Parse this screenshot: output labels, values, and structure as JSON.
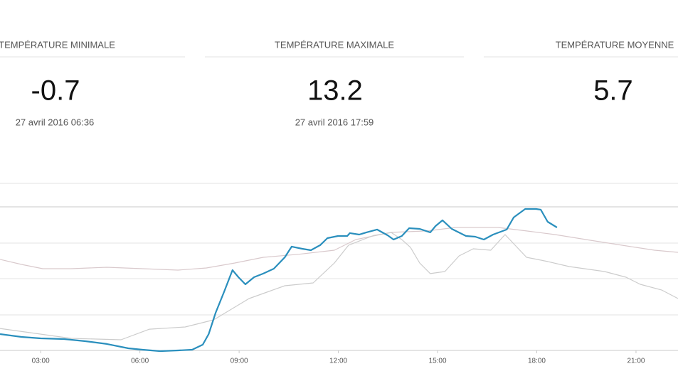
{
  "stats": [
    {
      "title": "TEMPÉRATURE MINIMALE",
      "value": "-0.7",
      "date": "27 avril 2016 06:36"
    },
    {
      "title": "TEMPÉRATURE MAXIMALE",
      "value": "13.2",
      "date": "27 avril 2016 17:59"
    },
    {
      "title": "TEMPÉRATURE MOYENNE",
      "value": "5.7"
    }
  ],
  "chart_data": {
    "type": "line",
    "xlim": [
      1.77,
      22.27
    ],
    "ylim": [
      -0.7,
      15.7
    ],
    "xticks": [
      {
        "value": 3,
        "label": "03:00"
      },
      {
        "value": 6,
        "label": "06:00"
      },
      {
        "value": 9,
        "label": "09:00"
      },
      {
        "value": 12,
        "label": "12:00"
      },
      {
        "value": 15,
        "label": "15:00"
      },
      {
        "value": 18,
        "label": "18:00"
      },
      {
        "value": 21,
        "label": "21:00"
      }
    ],
    "series": [
      {
        "color": "#d9c9cc",
        "x": [
          1.77,
          2.42,
          3.06,
          3.92,
          5.0,
          6.08,
          7.15,
          8.01,
          8.87,
          9.73,
          10.81,
          11.88,
          12.53,
          13.6,
          14.68,
          15.54,
          16.83,
          17.69,
          18.55,
          19.62,
          20.7,
          21.56,
          22.27
        ],
        "values": [
          8.27,
          7.78,
          7.36,
          7.36,
          7.5,
          7.36,
          7.22,
          7.43,
          7.92,
          8.47,
          8.77,
          9.17,
          10.21,
          10.91,
          11.05,
          11.39,
          11.39,
          11.05,
          10.7,
          10.14,
          9.59,
          9.17,
          8.96
        ]
      },
      {
        "color": "#cccccc",
        "x": [
          1.77,
          3.92,
          5.43,
          6.29,
          7.37,
          8.23,
          9.3,
          10.38,
          11.24,
          11.88,
          12.31,
          12.74,
          13.06,
          13.6,
          13.92,
          14.18,
          14.46,
          14.78,
          15.22,
          15.65,
          16.08,
          16.61,
          17.04,
          17.69,
          18.33,
          18.98,
          20.05,
          20.7,
          21.13,
          21.77,
          22.27
        ],
        "values": [
          1.52,
          0.55,
          0.41,
          1.45,
          1.66,
          2.36,
          4.44,
          5.69,
          5.97,
          7.92,
          9.66,
          10.2,
          10.6,
          10.9,
          10.2,
          9.45,
          7.92,
          6.88,
          7.08,
          8.61,
          9.31,
          9.17,
          10.7,
          8.47,
          8.06,
          7.57,
          7.08,
          6.53,
          5.83,
          5.28,
          4.44
        ]
      },
      {
        "color": "#2a8fbd",
        "x": [
          1.77,
          2.42,
          3.0,
          3.71,
          4.35,
          5.0,
          5.65,
          6.08,
          6.61,
          7.15,
          7.58,
          7.9,
          8.08,
          8.29,
          8.55,
          8.8,
          8.98,
          9.19,
          9.45,
          9.73,
          10.05,
          10.38,
          10.59,
          10.91,
          11.17,
          11.45,
          11.67,
          11.99,
          12.27,
          12.35,
          12.63,
          12.85,
          13.17,
          13.49,
          13.67,
          13.92,
          14.14,
          14.46,
          14.78,
          14.94,
          15.15,
          15.43,
          15.86,
          16.14,
          16.4,
          16.68,
          17.09,
          17.3,
          17.65,
          17.98,
          18.12,
          18.33,
          18.61
        ],
        "values": [
          0.97,
          0.69,
          0.55,
          0.48,
          0.27,
          0.0,
          -0.42,
          -0.56,
          -0.7,
          -0.63,
          -0.56,
          -0.07,
          0.97,
          3.05,
          5.14,
          7.22,
          6.53,
          5.83,
          6.53,
          6.88,
          7.36,
          8.47,
          9.52,
          9.31,
          9.17,
          9.66,
          10.35,
          10.56,
          10.56,
          10.84,
          10.7,
          10.91,
          11.19,
          10.63,
          10.21,
          10.56,
          11.32,
          11.25,
          10.91,
          11.53,
          12.09,
          11.25,
          10.56,
          10.49,
          10.21,
          10.7,
          11.19,
          12.37,
          13.2,
          13.2,
          13.13,
          11.95,
          11.39
        ]
      }
    ]
  }
}
